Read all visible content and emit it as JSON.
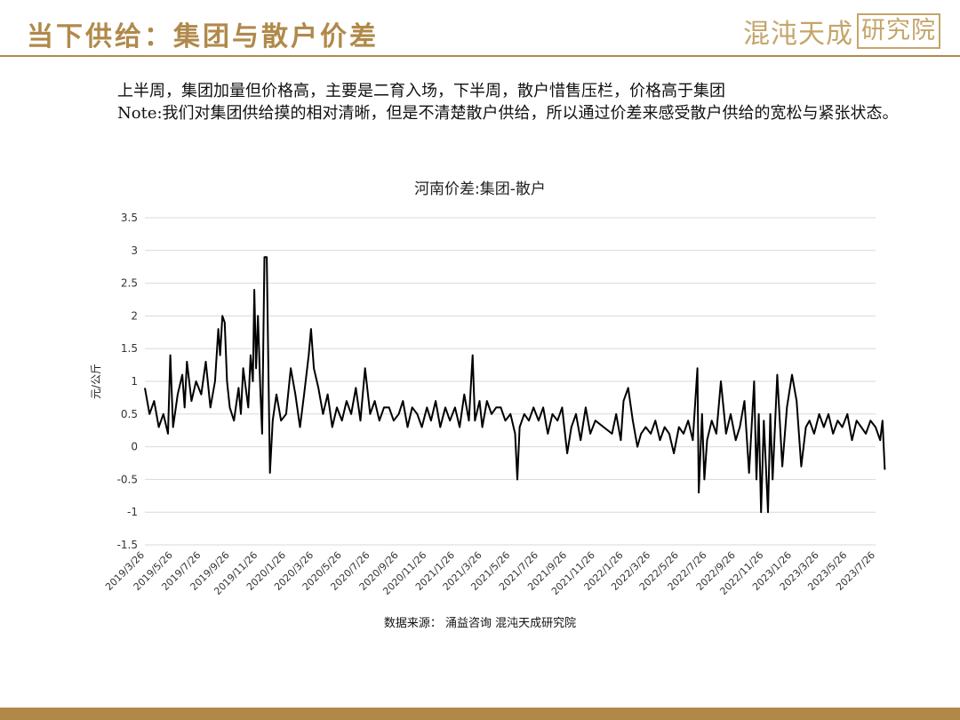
{
  "page": {
    "title": "当下供给：集团与散户价差",
    "logo_main": "混沌天成",
    "logo_box": "研究院",
    "paragraph1": "上半周，集团加量但价格高，主要是二育入场，下半周，散户惜售压栏，价格高于集团",
    "paragraph2": "Note:我们对集团供给摸的相对清晰，但是不清楚散户供给，所以通过价差来感受散户供给的宽松与紧张状态。",
    "source": "数据来源： 涌益咨询 混沌天成研究院"
  },
  "colors": {
    "accent": "#b0894a",
    "line": "#000000",
    "grid": "#d9d9d9"
  },
  "chart_data": {
    "type": "line",
    "title": "河南价差:集团-散户",
    "ylabel": "元/公斤",
    "xlabel": "",
    "ylim": [
      -1.5,
      3.5
    ],
    "yticks": [
      -1.5,
      -1,
      -0.5,
      0,
      0.5,
      1,
      1.5,
      2,
      2.5,
      3,
      3.5
    ],
    "xticks": [
      "2019/3/26",
      "2019/5/26",
      "2019/7/26",
      "2019/9/26",
      "2019/11/26",
      "2020/1/26",
      "2020/3/26",
      "2020/5/26",
      "2020/7/26",
      "2020/9/26",
      "2020/11/26",
      "2021/1/26",
      "2021/3/26",
      "2021/5/26",
      "2021/7/26",
      "2021/9/26",
      "2021/11/26",
      "2022/1/26",
      "2022/3/26",
      "2022/5/26",
      "2022/7/26",
      "2022/9/26",
      "2022/11/26",
      "2023/1/26",
      "2023/3/26",
      "2023/5/26",
      "2023/7/26"
    ],
    "grid": true,
    "legend": "none",
    "series": [
      {
        "points": [
          [
            "2019/3/26",
            0.9
          ],
          [
            "2019/4/5",
            0.5
          ],
          [
            "2019/4/15",
            0.7
          ],
          [
            "2019/4/25",
            0.3
          ],
          [
            "2019/5/5",
            0.5
          ],
          [
            "2019/5/15",
            0.2
          ],
          [
            "2019/5/20",
            1.4
          ],
          [
            "2019/5/26",
            0.3
          ],
          [
            "2019/6/5",
            0.8
          ],
          [
            "2019/6/15",
            1.1
          ],
          [
            "2019/6/20",
            0.6
          ],
          [
            "2019/6/25",
            1.3
          ],
          [
            "2019/7/5",
            0.7
          ],
          [
            "2019/7/15",
            1.0
          ],
          [
            "2019/7/26",
            0.8
          ],
          [
            "2019/8/5",
            1.3
          ],
          [
            "2019/8/15",
            0.6
          ],
          [
            "2019/8/25",
            1.0
          ],
          [
            "2019/9/1",
            1.8
          ],
          [
            "2019/9/5",
            1.4
          ],
          [
            "2019/9/10",
            2.0
          ],
          [
            "2019/9/15",
            1.9
          ],
          [
            "2019/9/20",
            1.0
          ],
          [
            "2019/9/26",
            0.6
          ],
          [
            "2019/10/5",
            0.4
          ],
          [
            "2019/10/15",
            0.9
          ],
          [
            "2019/10/20",
            0.5
          ],
          [
            "2019/10/25",
            1.2
          ],
          [
            "2019/11/5",
            0.6
          ],
          [
            "2019/11/10",
            1.4
          ],
          [
            "2019/11/15",
            1.0
          ],
          [
            "2019/11/18",
            2.4
          ],
          [
            "2019/11/22",
            1.2
          ],
          [
            "2019/11/26",
            2.0
          ],
          [
            "2019/12/1",
            0.9
          ],
          [
            "2019/12/5",
            0.2
          ],
          [
            "2019/12/10",
            2.9
          ],
          [
            "2019/12/15",
            2.9
          ],
          [
            "2019/12/18",
            1.5
          ],
          [
            "2019/12/22",
            -0.4
          ],
          [
            "2019/12/28",
            0.4
          ],
          [
            "2020/1/5",
            0.8
          ],
          [
            "2020/1/15",
            0.4
          ],
          [
            "2020/1/26",
            0.5
          ],
          [
            "2020/2/5",
            1.2
          ],
          [
            "2020/2/15",
            0.8
          ],
          [
            "2020/2/25",
            0.3
          ],
          [
            "2020/3/5",
            0.8
          ],
          [
            "2020/3/15",
            1.4
          ],
          [
            "2020/3/20",
            1.8
          ],
          [
            "2020/3/26",
            1.2
          ],
          [
            "2020/4/5",
            0.9
          ],
          [
            "2020/4/15",
            0.5
          ],
          [
            "2020/4/25",
            0.8
          ],
          [
            "2020/5/5",
            0.3
          ],
          [
            "2020/5/15",
            0.6
          ],
          [
            "2020/5/26",
            0.4
          ],
          [
            "2020/6/5",
            0.7
          ],
          [
            "2020/6/15",
            0.5
          ],
          [
            "2020/6/25",
            0.9
          ],
          [
            "2020/7/5",
            0.4
          ],
          [
            "2020/7/15",
            1.2
          ],
          [
            "2020/7/26",
            0.5
          ],
          [
            "2020/8/5",
            0.7
          ],
          [
            "2020/8/15",
            0.4
          ],
          [
            "2020/8/25",
            0.6
          ],
          [
            "2020/9/5",
            0.6
          ],
          [
            "2020/9/15",
            0.4
          ],
          [
            "2020/9/26",
            0.5
          ],
          [
            "2020/10/5",
            0.7
          ],
          [
            "2020/10/15",
            0.3
          ],
          [
            "2020/10/25",
            0.6
          ],
          [
            "2020/11/5",
            0.5
          ],
          [
            "2020/11/15",
            0.3
          ],
          [
            "2020/11/26",
            0.6
          ],
          [
            "2020/12/5",
            0.4
          ],
          [
            "2020/12/15",
            0.7
          ],
          [
            "2020/12/25",
            0.3
          ],
          [
            "2021/1/5",
            0.6
          ],
          [
            "2021/1/15",
            0.4
          ],
          [
            "2021/1/26",
            0.6
          ],
          [
            "2021/2/5",
            0.3
          ],
          [
            "2021/2/15",
            0.8
          ],
          [
            "2021/2/25",
            0.4
          ],
          [
            "2021/3/5",
            1.4
          ],
          [
            "2021/3/10",
            0.4
          ],
          [
            "2021/3/20",
            0.7
          ],
          [
            "2021/3/26",
            0.3
          ],
          [
            "2021/4/5",
            0.7
          ],
          [
            "2021/4/15",
            0.5
          ],
          [
            "2021/4/25",
            0.6
          ],
          [
            "2021/5/5",
            0.6
          ],
          [
            "2021/5/15",
            0.4
          ],
          [
            "2021/5/26",
            0.5
          ],
          [
            "2021/6/5",
            0.2
          ],
          [
            "2021/6/10",
            -0.5
          ],
          [
            "2021/6/15",
            0.3
          ],
          [
            "2021/6/25",
            0.5
          ],
          [
            "2021/7/5",
            0.4
          ],
          [
            "2021/7/15",
            0.6
          ],
          [
            "2021/7/26",
            0.4
          ],
          [
            "2021/8/5",
            0.6
          ],
          [
            "2021/8/15",
            0.2
          ],
          [
            "2021/8/25",
            0.5
          ],
          [
            "2021/9/5",
            0.4
          ],
          [
            "2021/9/15",
            0.6
          ],
          [
            "2021/9/26",
            -0.1
          ],
          [
            "2021/10/5",
            0.3
          ],
          [
            "2021/10/15",
            0.5
          ],
          [
            "2021/10/25",
            0.1
          ],
          [
            "2021/11/5",
            0.6
          ],
          [
            "2021/11/15",
            0.2
          ],
          [
            "2021/11/26",
            0.4
          ],
          [
            "2022/1/1",
            0.2
          ],
          [
            "2022/1/10",
            0.5
          ],
          [
            "2022/1/20",
            0.1
          ],
          [
            "2022/1/26",
            0.7
          ],
          [
            "2022/2/5",
            0.9
          ],
          [
            "2022/2/15",
            0.4
          ],
          [
            "2022/2/25",
            0.0
          ],
          [
            "2022/3/5",
            0.2
          ],
          [
            "2022/3/15",
            0.3
          ],
          [
            "2022/3/26",
            0.2
          ],
          [
            "2022/4/5",
            0.4
          ],
          [
            "2022/4/15",
            0.1
          ],
          [
            "2022/4/25",
            0.3
          ],
          [
            "2022/5/5",
            0.2
          ],
          [
            "2022/5/15",
            -0.1
          ],
          [
            "2022/5/26",
            0.3
          ],
          [
            "2022/6/5",
            0.2
          ],
          [
            "2022/6/15",
            0.4
          ],
          [
            "2022/6/25",
            0.1
          ],
          [
            "2022/7/5",
            1.2
          ],
          [
            "2022/7/8",
            -0.7
          ],
          [
            "2022/7/15",
            0.5
          ],
          [
            "2022/7/20",
            -0.5
          ],
          [
            "2022/7/26",
            0.1
          ],
          [
            "2022/8/5",
            0.4
          ],
          [
            "2022/8/15",
            0.2
          ],
          [
            "2022/8/25",
            1.0
          ],
          [
            "2022/9/5",
            0.2
          ],
          [
            "2022/9/15",
            0.5
          ],
          [
            "2022/9/26",
            0.1
          ],
          [
            "2022/10/5",
            0.3
          ],
          [
            "2022/10/15",
            0.7
          ],
          [
            "2022/10/25",
            -0.4
          ],
          [
            "2022/11/5",
            1.0
          ],
          [
            "2022/11/10",
            -0.5
          ],
          [
            "2022/11/15",
            0.5
          ],
          [
            "2022/11/20",
            -1.0
          ],
          [
            "2022/11/26",
            0.4
          ],
          [
            "2022/12/5",
            -1.0
          ],
          [
            "2022/12/10",
            0.5
          ],
          [
            "2022/12/15",
            -0.5
          ],
          [
            "2022/12/25",
            1.1
          ],
          [
            "2023/1/5",
            -0.3
          ],
          [
            "2023/1/15",
            0.6
          ],
          [
            "2023/1/26",
            1.1
          ],
          [
            "2023/2/5",
            0.7
          ],
          [
            "2023/2/15",
            -0.3
          ],
          [
            "2023/2/25",
            0.3
          ],
          [
            "2023/3/5",
            0.4
          ],
          [
            "2023/3/15",
            0.2
          ],
          [
            "2023/3/26",
            0.5
          ],
          [
            "2023/4/5",
            0.3
          ],
          [
            "2023/4/15",
            0.5
          ],
          [
            "2023/4/25",
            0.2
          ],
          [
            "2023/5/5",
            0.4
          ],
          [
            "2023/5/15",
            0.3
          ],
          [
            "2023/5/26",
            0.5
          ],
          [
            "2023/6/5",
            0.1
          ],
          [
            "2023/6/15",
            0.4
          ],
          [
            "2023/6/25",
            0.3
          ],
          [
            "2023/7/5",
            0.2
          ],
          [
            "2023/7/15",
            0.4
          ],
          [
            "2023/7/26",
            0.3
          ],
          [
            "2023/8/5",
            0.1
          ],
          [
            "2023/8/10",
            0.4
          ],
          [
            "2023/8/15",
            -0.35
          ]
        ]
      }
    ]
  }
}
